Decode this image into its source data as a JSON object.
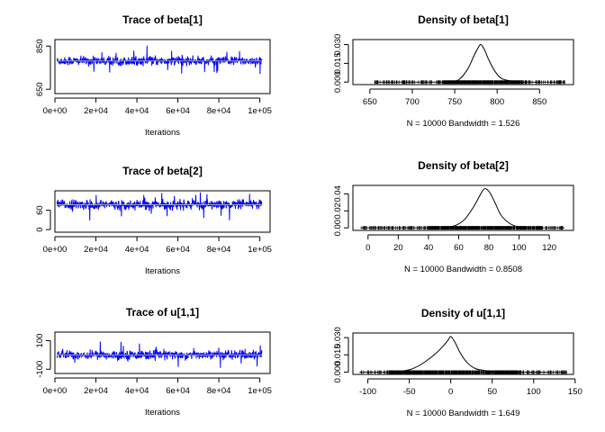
{
  "chart_data": [
    {
      "type": "line",
      "title": "Trace of beta[1]",
      "xlabel": "Iterations",
      "ylabel": "",
      "xlim": [
        0,
        105000
      ],
      "ylim": [
        630,
        880
      ],
      "x_ticks": [
        0,
        20000,
        40000,
        60000,
        80000,
        100000
      ],
      "x_tick_labels": [
        "0e+00",
        "2e+04",
        "4e+04",
        "6e+04",
        "8e+04",
        "1e+05"
      ],
      "y_ticks": [
        650,
        850
      ],
      "y_tick_labels": [
        "650",
        "850"
      ],
      "series": [
        {
          "color": "#0000ff",
          "x_range": [
            1000,
            101000
          ],
          "center": 781,
          "spread": 12,
          "min": 655,
          "max": 865
        }
      ],
      "mean_line": {
        "color": "#aaaaaa"
      }
    },
    {
      "type": "line",
      "title": "Density of beta[1]",
      "xlabel": "N = 10000   Bandwidth = 1.526",
      "ylabel": "",
      "xlim": [
        630,
        890
      ],
      "ylim": [
        -0.002,
        0.034
      ],
      "x_ticks": [
        650,
        700,
        750,
        800,
        850
      ],
      "x_tick_labels": [
        "650",
        "700",
        "750",
        "800",
        "850"
      ],
      "y_ticks": [
        0,
        0.015,
        0.03
      ],
      "y_tick_labels": [
        "0.000",
        "0.015",
        "0.030"
      ],
      "series": [
        {
          "x": [
            745,
            755,
            765,
            772,
            778,
            781,
            785,
            790,
            797,
            805,
            815,
            825
          ],
          "y": [
            0.0,
            0.002,
            0.01,
            0.02,
            0.028,
            0.03,
            0.026,
            0.018,
            0.009,
            0.003,
            0.001,
            0.0
          ]
        }
      ],
      "rug": {
        "range": [
          655,
          880
        ],
        "dense": [
          735,
          830
        ]
      }
    },
    {
      "type": "line",
      "title": "Trace of beta[2]",
      "xlabel": "Iterations",
      "ylabel": "",
      "xlim": [
        0,
        105000
      ],
      "ylim": [
        -8,
        120
      ],
      "x_ticks": [
        0,
        20000,
        40000,
        60000,
        80000,
        100000
      ],
      "x_tick_labels": [
        "0e+00",
        "2e+04",
        "4e+04",
        "6e+04",
        "8e+04",
        "1e+05"
      ],
      "y_ticks": [
        0,
        60
      ],
      "y_tick_labels": [
        "0",
        "60"
      ],
      "series": [
        {
          "color": "#0000ff",
          "x_range": [
            1000,
            101000
          ],
          "center": 77,
          "spread": 8.5,
          "min": 5,
          "max": 115
        }
      ],
      "mean_line": {
        "color": "#aaaaaa"
      }
    },
    {
      "type": "line",
      "title": "Density of beta[2]",
      "xlabel": "N = 10000   Bandwidth = 0.8508",
      "ylabel": "",
      "xlim": [
        -10,
        136
      ],
      "ylim": [
        -0.003,
        0.05
      ],
      "x_ticks": [
        0,
        20,
        40,
        60,
        80,
        100,
        120
      ],
      "x_tick_labels": [
        "0",
        "20",
        "40",
        "60",
        "80",
        "100",
        "120"
      ],
      "y_ticks": [
        0,
        0.02,
        0.04
      ],
      "y_tick_labels": [
        "0.00",
        "0.02",
        "0.04"
      ],
      "series": [
        {
          "x": [
            50,
            58,
            64,
            70,
            74,
            77,
            80,
            84,
            88,
            94,
            100,
            108
          ],
          "y": [
            0.0,
            0.003,
            0.01,
            0.025,
            0.038,
            0.046,
            0.043,
            0.03,
            0.015,
            0.005,
            0.001,
            0.0
          ]
        }
      ],
      "rug": {
        "range": [
          -5,
          130
        ],
        "dense": [
          40,
          115
        ]
      }
    },
    {
      "type": "line",
      "title": "Trace of u[1,1]",
      "xlabel": "Iterations",
      "ylabel": "",
      "xlim": [
        0,
        105000
      ],
      "ylim": [
        -130,
        160
      ],
      "x_ticks": [
        0,
        20000,
        40000,
        60000,
        80000,
        100000
      ],
      "x_tick_labels": [
        "0e+00",
        "2e+04",
        "4e+04",
        "6e+04",
        "8e+04",
        "1e+05"
      ],
      "y_ticks": [
        -100,
        100
      ],
      "y_tick_labels": [
        "-100",
        "100"
      ],
      "series": [
        {
          "color": "#0000ff",
          "x_range": [
            1000,
            101000
          ],
          "center": 0,
          "spread": 18,
          "min": -100,
          "max": 140
        }
      ],
      "mean_line": {
        "color": "#aaaaaa"
      }
    },
    {
      "type": "line",
      "title": "Density of u[1,1]",
      "xlabel": "N = 10000   Bandwidth = 1.649",
      "ylabel": "",
      "xlim": [
        -118,
        148
      ],
      "ylim": [
        -0.002,
        0.034
      ],
      "x_ticks": [
        -100,
        -50,
        0,
        50,
        100,
        150
      ],
      "x_tick_labels": [
        "-100",
        "-50",
        "0",
        "50",
        "100",
        "150"
      ],
      "y_ticks": [
        0,
        0.015,
        0.03
      ],
      "y_tick_labels": [
        "0.000",
        "0.015",
        "0.030"
      ],
      "series": [
        {
          "x": [
            -70,
            -50,
            -35,
            -20,
            -10,
            -3,
            0,
            5,
            12,
            20,
            30,
            45,
            60
          ],
          "y": [
            0.0,
            0.002,
            0.007,
            0.015,
            0.022,
            0.028,
            0.031,
            0.026,
            0.016,
            0.008,
            0.003,
            0.001,
            0.0
          ]
        }
      ],
      "rug": {
        "range": [
          -110,
          140
        ],
        "dense": [
          -75,
          85
        ]
      }
    }
  ]
}
